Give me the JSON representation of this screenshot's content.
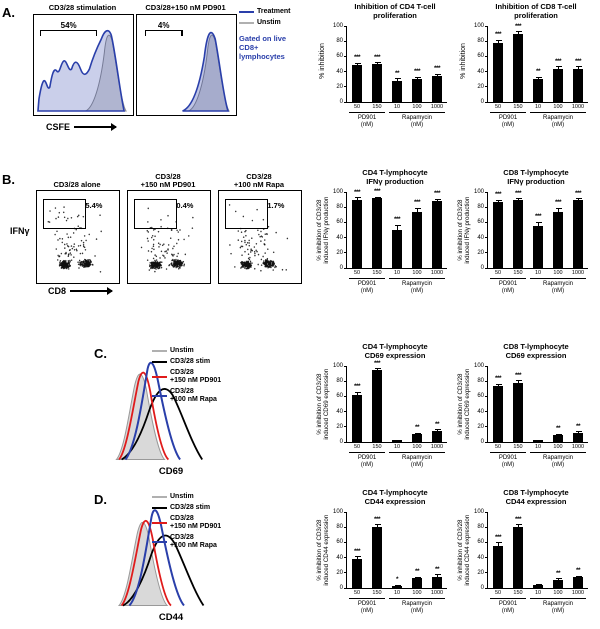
{
  "colors": {
    "treatment_blue": "#2a3faa",
    "unstim_gray": "#b0b0b0",
    "pd901_red": "#e01b1b",
    "bar_black": "#000000"
  },
  "panel_a": {
    "label": "A.",
    "histograms": [
      {
        "title": "CD3/28 stimulation",
        "gate_pct": "54%"
      },
      {
        "title": "CD3/28+150 nM PD901",
        "gate_pct": "4%"
      }
    ],
    "legend": [
      {
        "label": "Treatment",
        "color": "#2a3faa"
      },
      {
        "label": "Unstim",
        "color": "#b0b0b0"
      }
    ],
    "gating_note": "Gated on live CD8+ lymphocytes",
    "x_axis": "CSFE"
  },
  "panel_b": {
    "label": "B.",
    "plots": [
      {
        "title": "CD3/28 alone",
        "gate_pct": "5.4%"
      },
      {
        "title": "CD3/28\n+150 nM PD901",
        "gate_pct": "0.4%"
      },
      {
        "title": "CD3/28\n+100 nM Rapa",
        "gate_pct": "1.7%"
      }
    ],
    "y_axis": "IFNγ",
    "x_axis": "CD8"
  },
  "panel_c": {
    "label": "C.",
    "x_axis": "CD69"
  },
  "panel_d": {
    "label": "D.",
    "x_axis": "CD44"
  },
  "hist_legend": [
    {
      "label": "Unstim",
      "color": "#b0b0b0"
    },
    {
      "label": "CD3/28 stim",
      "color": "#000000"
    },
    {
      "label": "CD3/28\n+150 nM PD901",
      "color": "#e01b1b"
    },
    {
      "label": "CD3/28\n+100 nM Rapa",
      "color": "#2a3faa"
    }
  ],
  "chart_data": [
    {
      "type": "bar",
      "title": "Inhibition of CD4 T-cell\nproliferation",
      "ylabel": "% inhibition",
      "ylim": [
        0,
        100
      ],
      "yticks": [
        0,
        20,
        40,
        60,
        80,
        100
      ],
      "categories": [
        "50",
        "150",
        "10",
        "100",
        "1000"
      ],
      "groups": [
        {
          "label": "PD901\n(nM)",
          "span": 2
        },
        {
          "label": "Rapamycin\n(nM)",
          "span": 3
        }
      ],
      "values": [
        49,
        50,
        27,
        30,
        34
      ],
      "errors": [
        3,
        2,
        4,
        3,
        3
      ],
      "sig": [
        "***",
        "***",
        "**",
        "***",
        "***"
      ]
    },
    {
      "type": "bar",
      "title": "Inhibition of CD8 T-cell\nproliferation",
      "ylabel": "% inhibition",
      "ylim": [
        0,
        100
      ],
      "yticks": [
        0,
        20,
        40,
        60,
        80,
        100
      ],
      "categories": [
        "50",
        "150",
        "10",
        "100",
        "1000"
      ],
      "groups": [
        {
          "label": "PD901\n(nM)",
          "span": 2
        },
        {
          "label": "Rapamycin\n(nM)",
          "span": 3
        }
      ],
      "values": [
        78,
        90,
        30,
        43,
        43
      ],
      "errors": [
        4,
        3,
        3,
        4,
        4
      ],
      "sig": [
        "***",
        "***",
        "**",
        "***",
        "***"
      ]
    },
    {
      "type": "bar",
      "title": "CD4 T-lymphocyte\nIFNγ production",
      "ylabel": "% inhibition of CD3/28\ninduced IFNγ production",
      "ylim": [
        0,
        100
      ],
      "yticks": [
        0,
        20,
        40,
        60,
        80,
        100
      ],
      "categories": [
        "50",
        "150",
        "10",
        "100",
        "1000"
      ],
      "groups": [
        {
          "label": "PD901\n(nM)",
          "span": 2
        },
        {
          "label": "Rapamycin\n(nM)",
          "span": 3
        }
      ],
      "values": [
        90,
        92,
        50,
        74,
        88
      ],
      "errors": [
        3,
        2,
        7,
        5,
        3
      ],
      "sig": [
        "***",
        "***",
        "***",
        "***",
        "***"
      ]
    },
    {
      "type": "bar",
      "title": "CD8 T-lymphocyte\nIFNγ production",
      "ylabel": "% inhibition of CD3/28\ninduced IFNγ production",
      "ylim": [
        0,
        100
      ],
      "yticks": [
        0,
        20,
        40,
        60,
        80,
        100
      ],
      "categories": [
        "50",
        "150",
        "10",
        "100",
        "1000"
      ],
      "groups": [
        {
          "label": "PD901\n(nM)",
          "span": 2
        },
        {
          "label": "Rapamycin\n(nM)",
          "span": 3
        }
      ],
      "values": [
        87,
        90,
        55,
        74,
        90
      ],
      "errors": [
        3,
        2,
        6,
        5,
        2
      ],
      "sig": [
        "***",
        "***",
        "***",
        "***",
        "***"
      ]
    },
    {
      "type": "bar",
      "title": "CD4 T-lymphocyte\nCD69 expression",
      "ylabel": "% inhibition of CD3/28\ninduced CD69 expression",
      "ylim": [
        0,
        100
      ],
      "yticks": [
        0,
        20,
        40,
        60,
        80,
        100
      ],
      "categories": [
        "50",
        "150",
        "10",
        "100",
        "1000"
      ],
      "groups": [
        {
          "label": "PD901\n(nM)",
          "span": 2
        },
        {
          "label": "Rapamycin\n(nM)",
          "span": 3
        }
      ],
      "values": [
        62,
        95,
        2,
        10,
        14
      ],
      "errors": [
        4,
        2,
        1,
        2,
        3
      ],
      "sig": [
        "***",
        "***",
        "",
        "**",
        "**"
      ]
    },
    {
      "type": "bar",
      "title": "CD8 T-lymphocyte\nCD69 expression",
      "ylabel": "% inhibition of CD3/28\ninduced CD69 expression",
      "ylim": [
        0,
        100
      ],
      "yticks": [
        0,
        20,
        40,
        60,
        80,
        100
      ],
      "categories": [
        "50",
        "150",
        "10",
        "100",
        "1000"
      ],
      "groups": [
        {
          "label": "PD901\n(nM)",
          "span": 2
        },
        {
          "label": "Rapamycin\n(nM)",
          "span": 3
        }
      ],
      "values": [
        74,
        78,
        2,
        9,
        12
      ],
      "errors": [
        3,
        3,
        1,
        2,
        2
      ],
      "sig": [
        "***",
        "***",
        "",
        "**",
        "**"
      ]
    },
    {
      "type": "bar",
      "title": "CD4 T-lymphocyte\nCD44 expression",
      "ylabel": "% inhibition of CD3/28\ninduced CD44 expression",
      "ylim": [
        0,
        100
      ],
      "yticks": [
        0,
        20,
        40,
        60,
        80,
        100
      ],
      "categories": [
        "50",
        "150",
        "10",
        "100",
        "1000"
      ],
      "groups": [
        {
          "label": "PD901\n(nM)",
          "span": 2
        },
        {
          "label": "Rapamycin\n(nM)",
          "span": 3
        }
      ],
      "values": [
        38,
        80,
        3,
        13,
        15
      ],
      "errors": [
        4,
        4,
        1,
        2,
        3
      ],
      "sig": [
        "***",
        "***",
        "*",
        "**",
        "**"
      ]
    },
    {
      "type": "bar",
      "title": "CD8 T-lymphocyte\nCD44 expression",
      "ylabel": "% inhibition of CD3/28\ninduced CD44 expression",
      "ylim": [
        0,
        100
      ],
      "yticks": [
        0,
        20,
        40,
        60,
        80,
        100
      ],
      "categories": [
        "50",
        "150",
        "10",
        "100",
        "1000"
      ],
      "groups": [
        {
          "label": "PD901\n(nM)",
          "span": 2
        },
        {
          "label": "Rapamycin\n(nM)",
          "span": 3
        }
      ],
      "values": [
        55,
        80,
        4,
        11,
        14
      ],
      "errors": [
        5,
        4,
        1,
        2,
        2
      ],
      "sig": [
        "***",
        "***",
        "",
        "**",
        "**"
      ]
    }
  ]
}
